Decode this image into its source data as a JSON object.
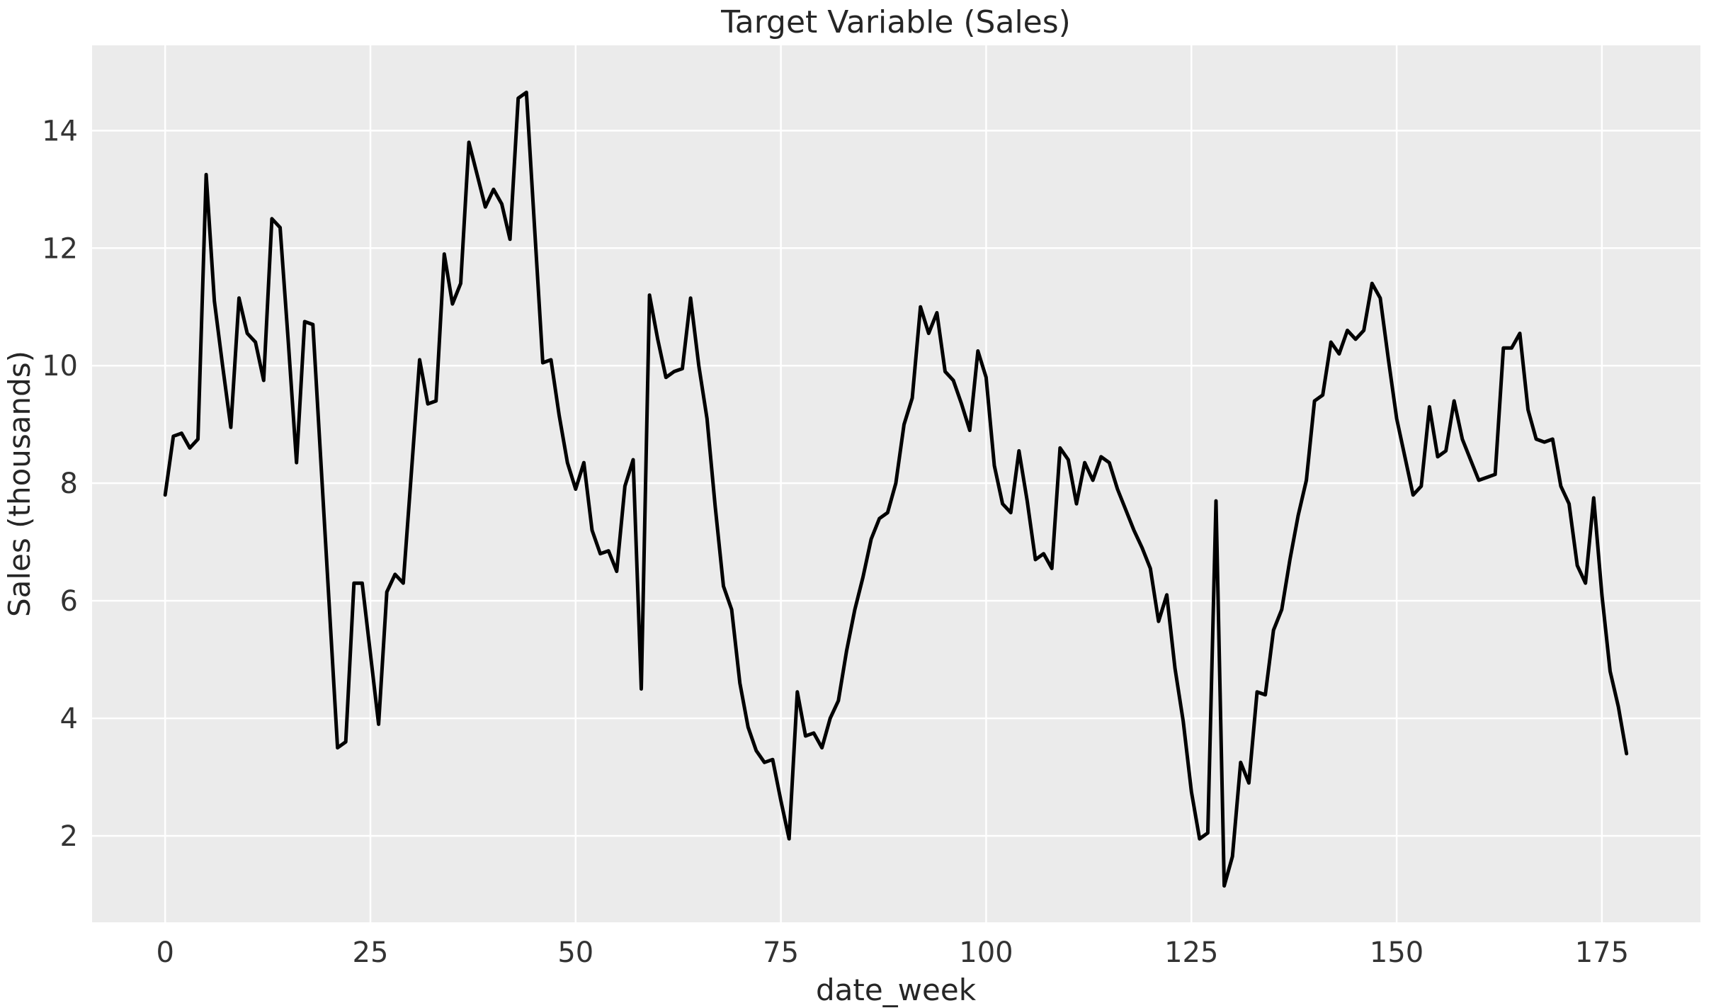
{
  "chart_data": {
    "type": "line",
    "title": "Target Variable (Sales)",
    "xlabel": "date_week",
    "ylabel": "Sales (thousands)",
    "x_start": 0,
    "x_step": 1,
    "values": [
      7.8,
      8.8,
      8.85,
      8.6,
      8.75,
      13.25,
      11.1,
      10.0,
      8.95,
      11.15,
      10.55,
      10.4,
      9.75,
      12.5,
      12.35,
      10.4,
      8.35,
      10.75,
      10.7,
      8.3,
      5.9,
      3.5,
      3.6,
      6.3,
      6.3,
      5.1,
      3.9,
      6.15,
      6.45,
      6.3,
      8.2,
      10.1,
      9.35,
      9.4,
      11.9,
      11.05,
      11.4,
      13.8,
      13.25,
      12.7,
      13.0,
      12.75,
      12.15,
      14.55,
      14.65,
      12.35,
      10.05,
      10.1,
      9.15,
      8.35,
      7.9,
      8.35,
      7.2,
      6.8,
      6.85,
      6.5,
      7.95,
      8.4,
      4.5,
      11.2,
      10.45,
      9.8,
      9.9,
      9.95,
      11.15,
      10.0,
      9.1,
      7.6,
      6.25,
      5.85,
      4.6,
      3.85,
      3.45,
      3.25,
      3.3,
      2.6,
      1.95,
      4.45,
      3.7,
      3.75,
      3.5,
      4.0,
      4.3,
      5.15,
      5.85,
      6.4,
      7.05,
      7.4,
      7.5,
      8.0,
      9.0,
      9.45,
      11.0,
      10.55,
      10.9,
      9.9,
      9.75,
      9.35,
      8.9,
      10.25,
      9.8,
      8.3,
      7.65,
      7.5,
      8.55,
      7.7,
      6.7,
      6.8,
      6.55,
      8.6,
      8.4,
      7.65,
      8.35,
      8.05,
      8.45,
      8.35,
      7.9,
      7.55,
      7.2,
      6.9,
      6.55,
      5.65,
      6.1,
      4.85,
      3.95,
      2.75,
      1.95,
      2.05,
      7.7,
      1.15,
      1.65,
      3.25,
      2.9,
      4.45,
      4.4,
      5.5,
      5.85,
      6.7,
      7.45,
      8.05,
      9.4,
      9.5,
      10.4,
      10.2,
      10.6,
      10.45,
      10.6,
      11.4,
      11.15,
      10.1,
      9.1,
      8.45,
      7.8,
      7.95,
      9.3,
      8.45,
      8.55,
      9.4,
      8.75,
      8.4,
      8.05,
      8.1,
      8.15,
      10.3,
      10.3,
      10.55,
      9.25,
      8.75,
      8.7,
      8.75,
      7.95,
      7.65,
      6.6,
      6.3,
      7.75,
      6.1,
      4.8,
      4.2,
      3.4
    ],
    "xticks": [
      0,
      25,
      50,
      75,
      100,
      125,
      150,
      175
    ],
    "yticks": [
      2,
      4,
      6,
      8,
      10,
      12,
      14
    ],
    "xlim": [
      -8.9,
      187.0
    ],
    "ylim": [
      0.53,
      15.45
    ],
    "grid": true,
    "legend_position": "none",
    "line_color": "#000000",
    "panel_bg": "#ebebeb",
    "grid_color": "#ffffff",
    "tick_color": "#333333",
    "title_color": "#262626"
  }
}
